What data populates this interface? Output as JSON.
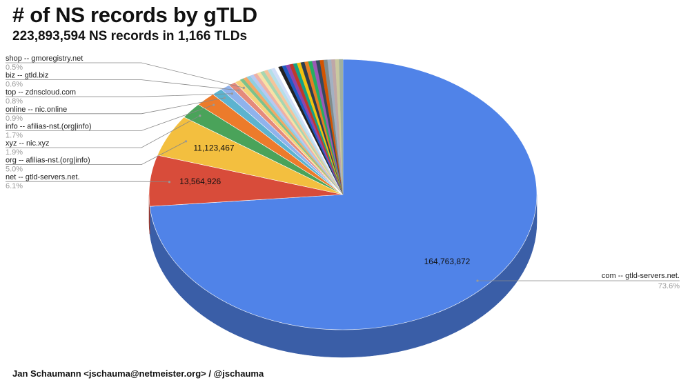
{
  "title": "# of NS records by gTLD",
  "subtitle": "223,893,594 NS records in 1,166 TLDs",
  "footer": "Jan Schaumann <jschauma@netmeister.org> / @jschauma",
  "chart_data": {
    "type": "pie",
    "style": "3d",
    "total": 223893594,
    "slices": [
      {
        "label": "com -- gtld-servers.net.",
        "percent": "73.6%",
        "value": 164763872,
        "value_label": "164,763,872",
        "color": "#5083e8"
      },
      {
        "label": "net -- gtld-servers.net.",
        "percent": "6.1%",
        "value": 13564926,
        "value_label": "13,564,926",
        "color": "#d84c3a"
      },
      {
        "label": "org -- afilias-nst.(org|info)",
        "percent": "5.0%",
        "value": 11123467,
        "value_label": "11,123,467",
        "color": "#f3bf3f"
      },
      {
        "label": "xyz -- nic.xyz",
        "percent": "1.9%",
        "color": "#4aa35a"
      },
      {
        "label": "info -- afilias-nst.(org|info)",
        "percent": "1.7%",
        "color": "#ec7b2b"
      },
      {
        "label": "online -- nic.online",
        "percent": "0.9%",
        "color": "#5cb3cf"
      },
      {
        "label": "top -- zdnscloud.com",
        "percent": "0.8%",
        "color": "#8fb2ec"
      },
      {
        "label": "biz -- gtld.biz",
        "percent": "0.6%",
        "color": "#e48a7c"
      },
      {
        "label": "shop -- gmoregistry.net",
        "percent": "0.5%",
        "color": "#f6d37a"
      }
    ],
    "remainder_colors": [
      "#7cc28a",
      "#f2a865",
      "#8fcfe0",
      "#b6c9f2",
      "#eeb0a6",
      "#f8e2a6",
      "#a7d6b0",
      "#f5c49a",
      "#b5dfe9",
      "#d0ddf7",
      "#ffffff",
      "#222222",
      "#1f5ac2",
      "#8e44ad",
      "#c0392b",
      "#16a085",
      "#f1c40f",
      "#2c3e50",
      "#e67e22",
      "#27ae60",
      "#9b59b6",
      "#34495e",
      "#d35400",
      "#7f8c8d",
      "#a3b1c2",
      "#bfa7a7",
      "#c9c9a0",
      "#a0b0a0"
    ]
  }
}
